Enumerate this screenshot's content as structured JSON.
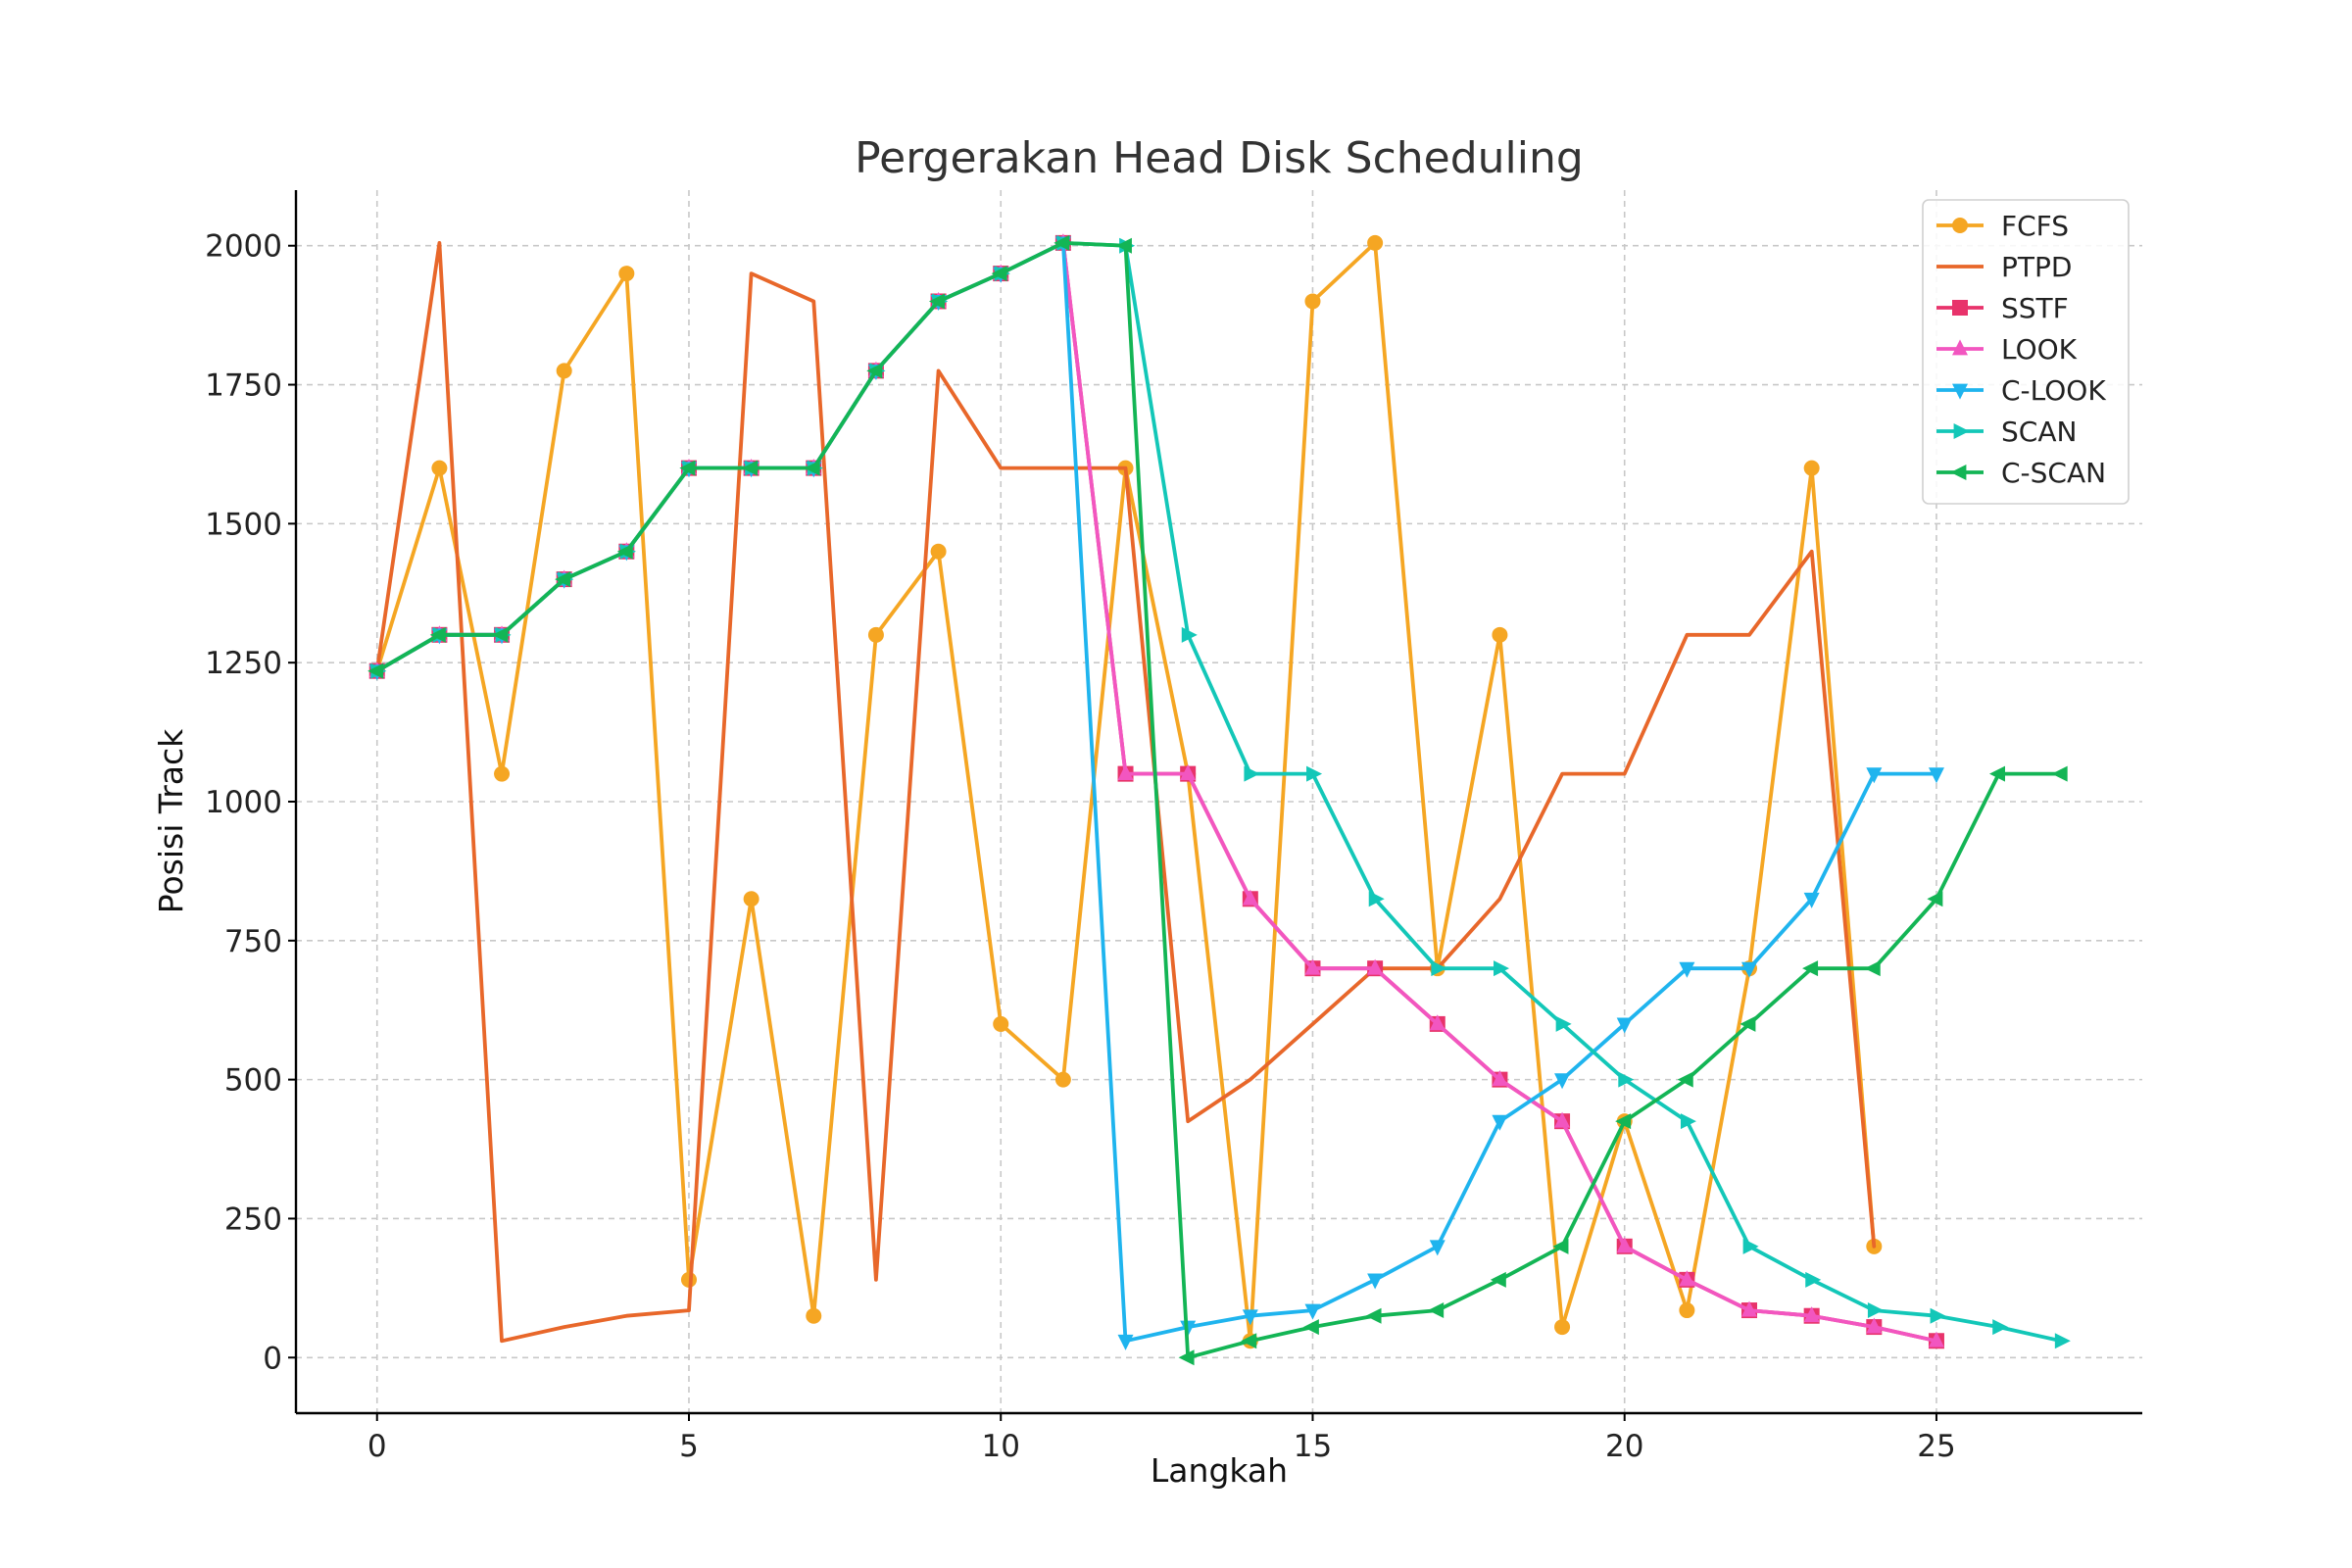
{
  "chart_data": {
    "type": "line",
    "title": "Pergerakan Head Disk Scheduling",
    "xlabel": "Langkah",
    "ylabel": "Posisi Track",
    "xlim": [
      -1.3,
      28.3
    ],
    "ylim": [
      -100,
      2100
    ],
    "xticks": [
      0,
      5,
      10,
      15,
      20,
      25
    ],
    "yticks": [
      0,
      250,
      500,
      750,
      1000,
      1250,
      1500,
      1750,
      2000
    ],
    "grid": true,
    "legend_position": "top-right",
    "series": [
      {
        "name": "FCFS",
        "color": "#f5a623",
        "marker": "circle",
        "x": [
          0,
          1,
          2,
          3,
          4,
          5,
          6,
          7,
          8,
          9,
          10,
          11,
          12,
          13,
          14,
          15,
          16,
          17,
          18,
          19,
          20,
          21,
          22,
          23,
          24
        ],
        "y": [
          1235,
          1600,
          1050,
          1775,
          1950,
          140,
          825,
          75,
          1300,
          1450,
          600,
          500,
          1600,
          1050,
          30,
          1900,
          2005,
          700,
          1300,
          55,
          425,
          85,
          700,
          1600,
          200
        ]
      },
      {
        "name": "PTPD",
        "color": "#e8672a",
        "marker": "none",
        "x": [
          0,
          1,
          2,
          3,
          4,
          5,
          6,
          7,
          8,
          9,
          10,
          11,
          12,
          13,
          14,
          15,
          16,
          17,
          18,
          19,
          20,
          21,
          22,
          23,
          24
        ],
        "y": [
          1235,
          2005,
          30,
          55,
          75,
          85,
          1950,
          1900,
          140,
          1775,
          1600,
          1600,
          1600,
          425,
          500,
          600,
          700,
          700,
          825,
          1050,
          1050,
          1300,
          1300,
          1450,
          200
        ]
      },
      {
        "name": "SSTF",
        "color": "#e8336b",
        "marker": "square",
        "x": [
          0,
          1,
          2,
          3,
          4,
          5,
          6,
          7,
          8,
          9,
          10,
          11,
          12,
          13,
          14,
          15,
          16,
          17,
          18,
          19,
          20,
          21,
          22,
          23,
          24,
          25
        ],
        "y": [
          1235,
          1300,
          1300,
          1400,
          1450,
          1600,
          1600,
          1600,
          1775,
          1900,
          1950,
          2005,
          1050,
          1050,
          825,
          700,
          700,
          600,
          500,
          425,
          200,
          140,
          85,
          75,
          55,
          30
        ]
      },
      {
        "name": "LOOK",
        "color": "#f256c0",
        "marker": "triangle-up",
        "x": [
          0,
          1,
          2,
          3,
          4,
          5,
          6,
          7,
          8,
          9,
          10,
          11,
          12,
          13,
          14,
          15,
          16,
          17,
          18,
          19,
          20,
          21,
          22,
          23,
          24,
          25
        ],
        "y": [
          1235,
          1300,
          1300,
          1400,
          1450,
          1600,
          1600,
          1600,
          1775,
          1900,
          1950,
          2005,
          1050,
          1050,
          825,
          700,
          700,
          600,
          500,
          425,
          200,
          140,
          85,
          75,
          55,
          30
        ]
      },
      {
        "name": "C-LOOK",
        "color": "#1fb4ee",
        "marker": "triangle-down",
        "x": [
          0,
          1,
          2,
          3,
          4,
          5,
          6,
          7,
          8,
          9,
          10,
          11,
          12,
          13,
          14,
          15,
          16,
          17,
          18,
          19,
          20,
          21,
          22,
          23,
          24,
          25
        ],
        "y": [
          1235,
          1300,
          1300,
          1400,
          1450,
          1600,
          1600,
          1600,
          1775,
          1900,
          1950,
          2005,
          30,
          55,
          75,
          85,
          140,
          200,
          425,
          500,
          600,
          700,
          700,
          825,
          1050,
          1050
        ]
      },
      {
        "name": "SCAN",
        "color": "#13c7b8",
        "marker": "triangle-right",
        "x": [
          0,
          1,
          2,
          3,
          4,
          5,
          6,
          7,
          8,
          9,
          10,
          11,
          12,
          13,
          14,
          15,
          16,
          17,
          18,
          19,
          20,
          21,
          22,
          23,
          24,
          25,
          26,
          27
        ],
        "y": [
          1235,
          1300,
          1300,
          1400,
          1450,
          1600,
          1600,
          1600,
          1775,
          1900,
          1950,
          2005,
          2000,
          1300,
          1050,
          1050,
          825,
          700,
          700,
          600,
          500,
          425,
          200,
          140,
          85,
          75,
          55,
          30
        ]
      },
      {
        "name": "C-SCAN",
        "color": "#13b555",
        "marker": "triangle-left",
        "x": [
          0,
          1,
          2,
          3,
          4,
          5,
          6,
          7,
          8,
          9,
          10,
          11,
          12,
          13,
          14,
          15,
          16,
          17,
          18,
          19,
          20,
          21,
          22,
          23,
          24,
          25,
          26,
          27
        ],
        "y": [
          1235,
          1300,
          1300,
          1400,
          1450,
          1600,
          1600,
          1600,
          1775,
          1900,
          1950,
          2005,
          2000,
          0,
          30,
          55,
          75,
          85,
          140,
          200,
          425,
          500,
          600,
          700,
          700,
          825,
          1050,
          1050
        ]
      }
    ]
  }
}
